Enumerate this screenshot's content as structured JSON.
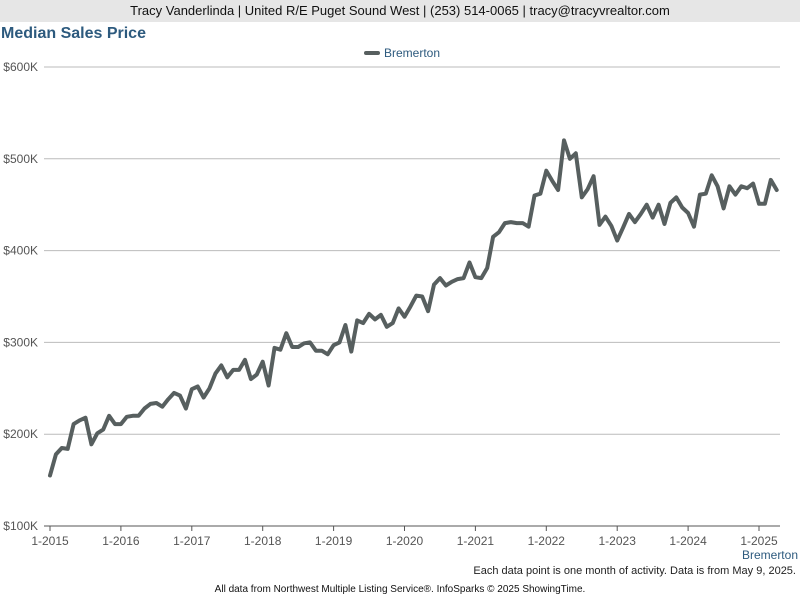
{
  "header": "Tracy Vanderlinda | United R/E Puget Sound West | (253) 514-0065 | tracy@tracyvrealtor.com",
  "chart_series_label": "Bremerton",
  "note": "Each data point is one month of activity. Data is from May 9, 2025.",
  "footer": "All data from Northwest Multiple Listing Service®. InfoSparks © 2025 ShowingTime.",
  "colors": {
    "line": "#575f5f",
    "title": "#2d5a7e",
    "grid": "#bbbbbb"
  },
  "chart_data": {
    "type": "line",
    "title": "Median Sales Price",
    "xlabel": "",
    "ylabel": "",
    "ylim": [
      100000,
      600000
    ],
    "yticks": [
      100000,
      200000,
      300000,
      400000,
      500000,
      600000
    ],
    "ytick_labels": [
      "$100K",
      "$200K",
      "$300K",
      "$400K",
      "$500K",
      "$600K"
    ],
    "xticks": [
      "2015-01",
      "2016-01",
      "2017-01",
      "2018-01",
      "2019-01",
      "2020-01",
      "2021-01",
      "2022-01",
      "2023-01",
      "2024-01",
      "2025-01"
    ],
    "xtick_labels": [
      "1-2015",
      "1-2016",
      "1-2017",
      "1-2018",
      "1-2019",
      "1-2020",
      "1-2021",
      "1-2022",
      "1-2023",
      "1-2024",
      "1-2025"
    ],
    "grid": true,
    "legend": "top-center",
    "series": [
      {
        "name": "Bremerton",
        "start": "2015-01",
        "values": [
          155000,
          178000,
          185000,
          184000,
          211000,
          215000,
          218000,
          189000,
          201000,
          205000,
          220000,
          211000,
          211000,
          219000,
          220000,
          220000,
          228000,
          233000,
          234000,
          230000,
          238000,
          245000,
          242000,
          228000,
          249000,
          252000,
          240000,
          250000,
          266000,
          275000,
          262000,
          270000,
          270000,
          281000,
          260000,
          265000,
          279000,
          253000,
          294000,
          292000,
          310000,
          295000,
          295000,
          299000,
          300000,
          291000,
          291000,
          287000,
          297000,
          300000,
          319000,
          290000,
          324000,
          321000,
          331000,
          325000,
          330000,
          317000,
          321000,
          337000,
          328000,
          339000,
          351000,
          350000,
          334000,
          363000,
          370000,
          362000,
          366000,
          369000,
          370000,
          387000,
          371000,
          370000,
          381000,
          415000,
          420000,
          430000,
          431000,
          430000,
          430000,
          426000,
          460000,
          462000,
          487000,
          476000,
          466000,
          520000,
          500000,
          506000,
          458000,
          467000,
          481000,
          428000,
          437000,
          427000,
          411000,
          425000,
          440000,
          431000,
          440000,
          450000,
          436000,
          450000,
          429000,
          452000,
          458000,
          447000,
          441000,
          426000,
          461000,
          462000,
          482000,
          470000,
          446000,
          470000,
          461000,
          470000,
          468000,
          473000,
          451000,
          451000,
          477000,
          466000
        ]
      }
    ]
  }
}
